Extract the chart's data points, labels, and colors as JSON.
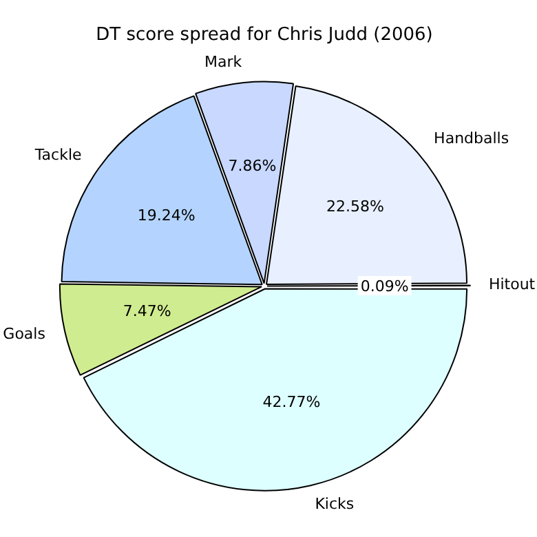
{
  "chart_data": {
    "type": "pie",
    "title": "DT score spread for Chris Judd (2006)",
    "categories": [
      "Hitout",
      "Handballs",
      "Mark",
      "Tackle",
      "Goals",
      "Kicks"
    ],
    "values": [
      0.09,
      22.58,
      7.86,
      19.24,
      7.47,
      42.77
    ],
    "value_labels": [
      "0.09%",
      "22.58%",
      "7.86%",
      "19.24%",
      "7.47%",
      "42.77%"
    ],
    "colors": [
      "#ffffff",
      "#e8f0ff",
      "#c8d8ff",
      "#b4d4ff",
      "#d0ec90",
      "#ddffff"
    ],
    "legend": false
  }
}
